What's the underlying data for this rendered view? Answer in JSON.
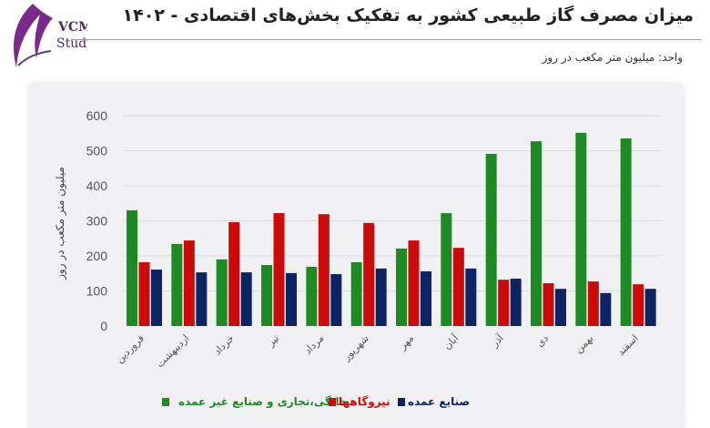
{
  "header": {
    "title": "میزان مصرف گاز طبیعی کشور به تفکیک بخش‌های اقتصادی - ۱۴۰۲",
    "unit": "واحد: میلیون متر مکعب در روز",
    "logo_text": "VCM Study"
  },
  "chart_data": {
    "type": "bar",
    "title": "میزان مصرف گاز طبیعی کشور به تفکیک بخش‌های اقتصادی - ۱۴۰۲",
    "xlabel": "",
    "ylabel": "میلیون متر مکعب در روز",
    "ylim": [
      0,
      600
    ],
    "yticks": [
      "0",
      "100",
      "200",
      "300",
      "400",
      "500",
      "600"
    ],
    "grid": true,
    "legend_position": "bottom",
    "categories": [
      "فروردین",
      "اردیبهشت",
      "خرداد",
      "تیر",
      "مرداد",
      "شهریور",
      "مهر",
      "آبان",
      "آذر",
      "دی",
      "بهمن",
      "اسفند"
    ],
    "series": [
      {
        "name": "خانگی،تجاری و صنایع غیر عمده",
        "color": "#1e8a24",
        "values": [
          330,
          234,
          190,
          174,
          169,
          182,
          221,
          322,
          491,
          527,
          551,
          535
        ]
      },
      {
        "name": "نیروگاهها",
        "color": "#cc0a0a",
        "values": [
          182,
          244,
          296,
          322,
          319,
          294,
          244,
          223,
          132,
          122,
          127,
          119
        ]
      },
      {
        "name": "صنایع عمده",
        "color": "#0d2464",
        "values": [
          161,
          153,
          153,
          151,
          148,
          164,
          156,
          164,
          135,
          106,
          94,
          106
        ]
      }
    ]
  }
}
